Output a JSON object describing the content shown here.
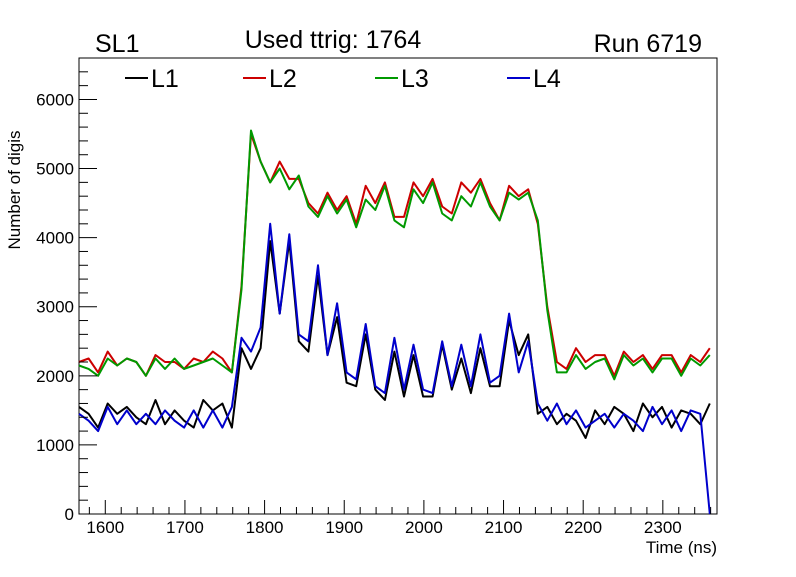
{
  "header": {
    "left_label": "SL1",
    "center_label": "Used ttrig: 1764",
    "right_label": "Run 6719"
  },
  "chart_data": {
    "type": "line",
    "xlabel": "Time (ns)",
    "ylabel": "Number of digis",
    "xlim": [
      1567,
      2368
    ],
    "ylim": [
      0,
      6600
    ],
    "x_ticks": [
      1600,
      1700,
      1800,
      1900,
      2000,
      2100,
      2200,
      2300
    ],
    "y_ticks": [
      0,
      1000,
      2000,
      3000,
      4000,
      5000,
      6000
    ],
    "grid": false,
    "legend_position": "top",
    "x": [
      1567,
      1579,
      1591,
      1603,
      1615,
      1627,
      1639,
      1651,
      1663,
      1675,
      1687,
      1699,
      1711,
      1723,
      1735,
      1747,
      1759,
      1771,
      1783,
      1795,
      1807,
      1819,
      1831,
      1843,
      1855,
      1867,
      1879,
      1891,
      1903,
      1915,
      1927,
      1939,
      1951,
      1963,
      1975,
      1987,
      1999,
      2011,
      2023,
      2035,
      2047,
      2059,
      2071,
      2083,
      2095,
      2107,
      2119,
      2131,
      2143,
      2155,
      2167,
      2179,
      2191,
      2203,
      2215,
      2227,
      2239,
      2251,
      2263,
      2275,
      2287,
      2299,
      2311,
      2323,
      2335,
      2347,
      2359
    ],
    "series": [
      {
        "name": "L1",
        "color": "#000000",
        "values": [
          1550,
          1450,
          1250,
          1600,
          1450,
          1550,
          1400,
          1300,
          1650,
          1300,
          1500,
          1350,
          1250,
          1650,
          1500,
          1600,
          1250,
          2400,
          2100,
          2400,
          3950,
          2900,
          3950,
          2500,
          2350,
          3450,
          2300,
          2850,
          1900,
          1850,
          2600,
          1800,
          1650,
          2350,
          1700,
          2300,
          1700,
          1700,
          2450,
          1800,
          2250,
          1750,
          2400,
          1850,
          1850,
          2800,
          2300,
          2600,
          1450,
          1550,
          1300,
          1450,
          1350,
          1100,
          1500,
          1300,
          1550,
          1450,
          1200,
          1600,
          1400,
          1550,
          1250,
          1500,
          1450,
          1300,
          1600
        ]
      },
      {
        "name": "L2",
        "color": "#cc0000",
        "values": [
          2200,
          2250,
          2050,
          2350,
          2150,
          2250,
          2200,
          2000,
          2300,
          2200,
          2200,
          2100,
          2250,
          2200,
          2350,
          2250,
          2050,
          3300,
          5500,
          5100,
          4800,
          5100,
          4850,
          4850,
          4500,
          4350,
          4650,
          4400,
          4600,
          4200,
          4750,
          4500,
          4800,
          4300,
          4300,
          4800,
          4600,
          4850,
          4450,
          4350,
          4800,
          4650,
          4850,
          4500,
          4250,
          4750,
          4600,
          4700,
          4200,
          3000,
          2200,
          2100,
          2400,
          2200,
          2300,
          2300,
          2000,
          2350,
          2200,
          2300,
          2100,
          2300,
          2300,
          2050,
          2300,
          2200,
          2400
        ]
      },
      {
        "name": "L3",
        "color": "#009900",
        "values": [
          2150,
          2100,
          2000,
          2250,
          2150,
          2250,
          2200,
          2000,
          2250,
          2100,
          2250,
          2100,
          2150,
          2200,
          2250,
          2150,
          2050,
          3250,
          5550,
          5100,
          4800,
          5000,
          4700,
          4900,
          4450,
          4300,
          4600,
          4350,
          4550,
          4150,
          4550,
          4400,
          4750,
          4250,
          4150,
          4700,
          4500,
          4800,
          4350,
          4250,
          4600,
          4450,
          4800,
          4450,
          4250,
          4650,
          4550,
          4650,
          4250,
          2950,
          2050,
          2050,
          2300,
          2100,
          2200,
          2250,
          1950,
          2300,
          2150,
          2250,
          2050,
          2250,
          2250,
          2000,
          2250,
          2150,
          2300
        ]
      },
      {
        "name": "L4",
        "color": "#0000cc",
        "values": [
          1450,
          1350,
          1200,
          1550,
          1300,
          1500,
          1300,
          1450,
          1300,
          1500,
          1350,
          1250,
          1500,
          1250,
          1500,
          1250,
          1550,
          2550,
          2350,
          2700,
          4200,
          2900,
          4050,
          2600,
          2500,
          3600,
          2300,
          3050,
          2050,
          1950,
          2750,
          1850,
          1750,
          2550,
          1800,
          2450,
          1800,
          1750,
          2500,
          1850,
          2450,
          1850,
          2600,
          1900,
          2000,
          2900,
          2050,
          2500,
          1600,
          1350,
          1600,
          1300,
          1500,
          1250,
          1350,
          1450,
          1250,
          1450,
          1350,
          1200,
          1550,
          1300,
          1500,
          1200,
          1500,
          1450,
          0
        ]
      }
    ]
  }
}
